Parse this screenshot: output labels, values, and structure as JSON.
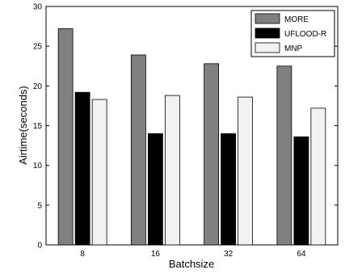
{
  "chart_data": {
    "type": "bar",
    "xlabel": "Batchsize",
    "ylabel": "Airtime(seconds)",
    "categories": [
      "8",
      "16",
      "32",
      "64"
    ],
    "ylim": [
      0,
      30
    ],
    "yticks": [
      "0",
      "5",
      "10",
      "15",
      "20",
      "25",
      "30"
    ],
    "grid": false,
    "legend_position": "top-right",
    "series": [
      {
        "name": "MORE",
        "color": "#808080",
        "values": [
          27.2,
          23.9,
          22.8,
          22.5
        ]
      },
      {
        "name": "UFLOOD-R",
        "color": "#000000",
        "values": [
          19.2,
          14.0,
          14.0,
          13.6
        ]
      },
      {
        "name": "MNP",
        "color": "#f2f2f2",
        "values": [
          18.3,
          18.8,
          18.6,
          17.2
        ]
      }
    ]
  }
}
